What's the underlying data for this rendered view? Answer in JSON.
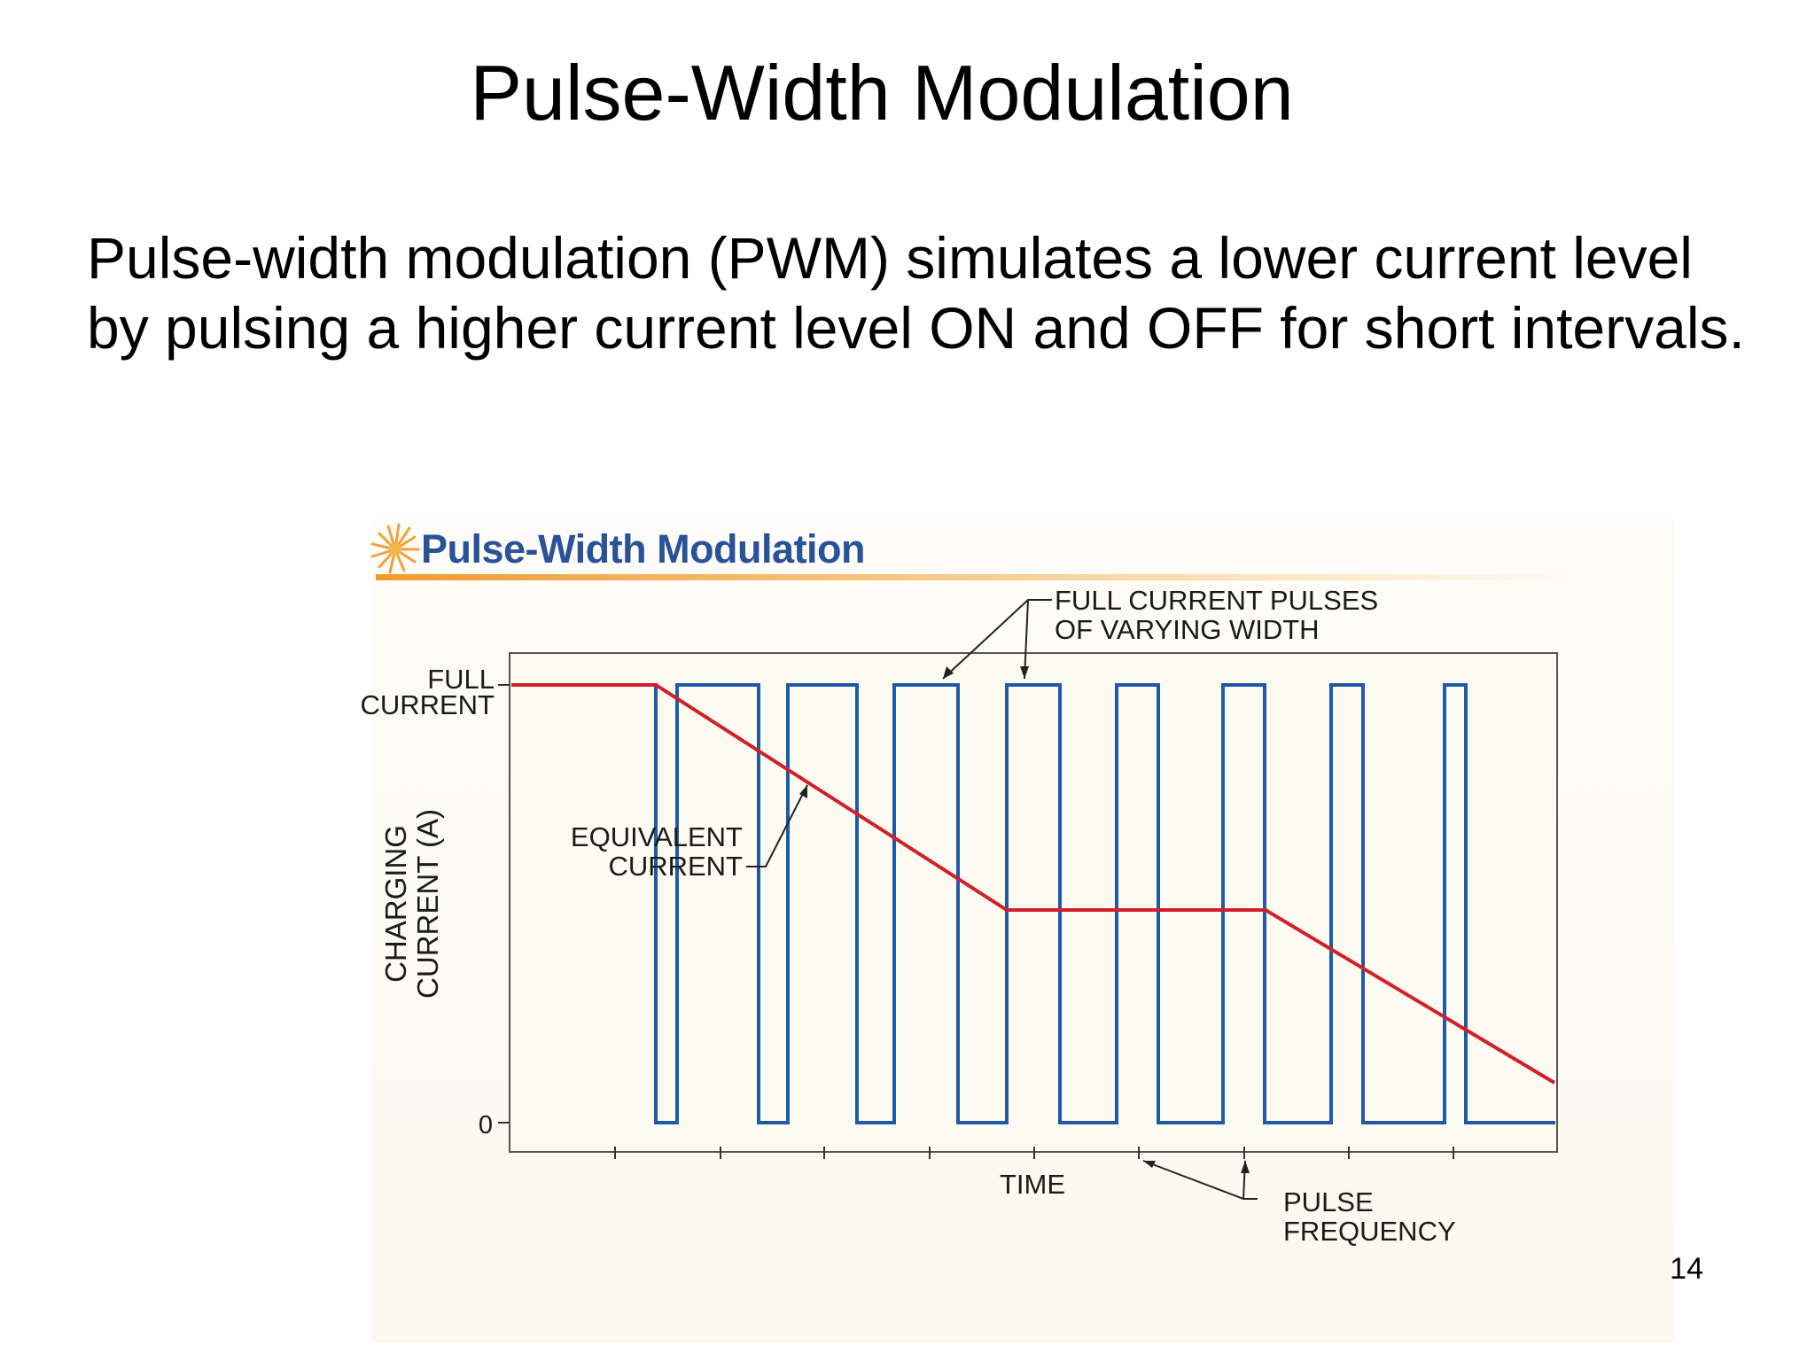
{
  "slide": {
    "title": "Pulse-Width Modulation",
    "body": "Pulse-width modulation (PWM) simulates a lower current level by pulsing a higher current level ON and OFF for short intervals.",
    "page_number": "14"
  },
  "figure": {
    "title": "Pulse-Width Modulation",
    "labels": {
      "full_current_line1": "FULL",
      "full_current_line2": "CURRENT",
      "zero": "0",
      "y_axis_line1": "CHARGING",
      "y_axis_line2": "CURRENT (A)",
      "equivalent_line1": "EQUIVALENT",
      "equivalent_line2": "CURRENT",
      "pulses_line1": "FULL CURRENT PULSES",
      "pulses_line2": "OF VARYING WIDTH",
      "time": "TIME",
      "frequency_line1": "PULSE",
      "frequency_line2": "FREQUENCY"
    },
    "colors": {
      "pulse": "#1f5aa6",
      "equivalent": "#d0202a",
      "title": "#2a5298",
      "accent": "#f29a2e"
    },
    "icons": [
      "sun-burst-icon"
    ]
  }
}
